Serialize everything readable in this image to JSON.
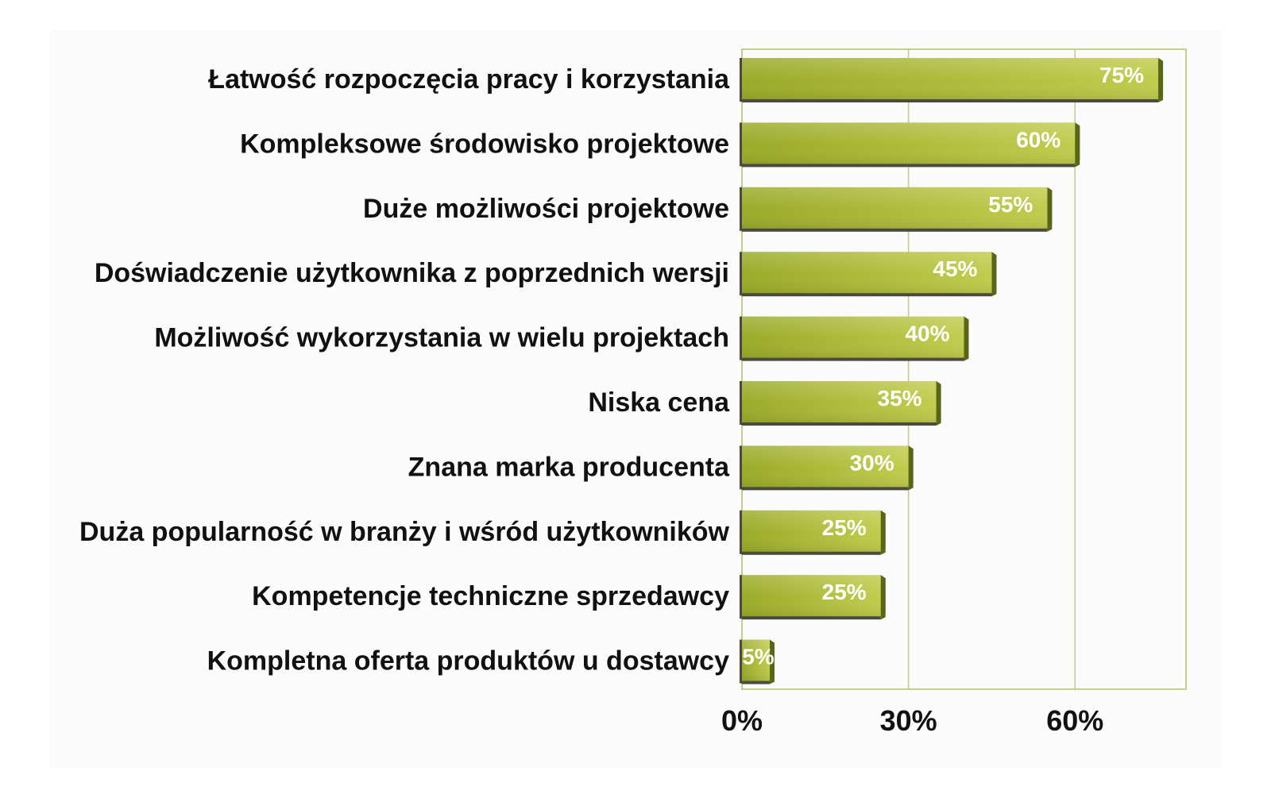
{
  "chart_data": {
    "type": "bar",
    "orientation": "horizontal",
    "title": "",
    "xlabel": "",
    "ylabel": "",
    "categories": [
      "Łatwość rozpoczęcia pracy i korzystania",
      "Kompleksowe środowisko projektowe",
      "Duże możliwości projektowe",
      "Doświadczenie użytkownika z poprzednich wersji",
      "Możliwość wykorzystania w wielu projektach",
      "Niska cena",
      "Znana marka producenta",
      "Duża popularność w branży i wśród użytkowników",
      "Kompetencje techniczne sprzedawcy",
      "Kompletna oferta produktów u dostawcy"
    ],
    "values": [
      75,
      60,
      55,
      45,
      40,
      35,
      30,
      25,
      25,
      5
    ],
    "value_labels": [
      "75%",
      "60%",
      "55%",
      "45%",
      "40%",
      "35%",
      "30%",
      "25%",
      "25%",
      "5%"
    ],
    "xlim": [
      0,
      80
    ],
    "x_ticks": [
      0,
      30,
      60
    ],
    "x_tick_labels": [
      "0%",
      "30%",
      "60%"
    ],
    "grid": true,
    "legend": "none",
    "colors": {
      "bar_light": "#c0cc4c",
      "bar_dark": "#9aaa28",
      "bar_edge": "#5a6616",
      "bar_shadow": "#4a4a40",
      "plot_border": "#b4be6a",
      "gridline": "#c4ca8a"
    }
  }
}
